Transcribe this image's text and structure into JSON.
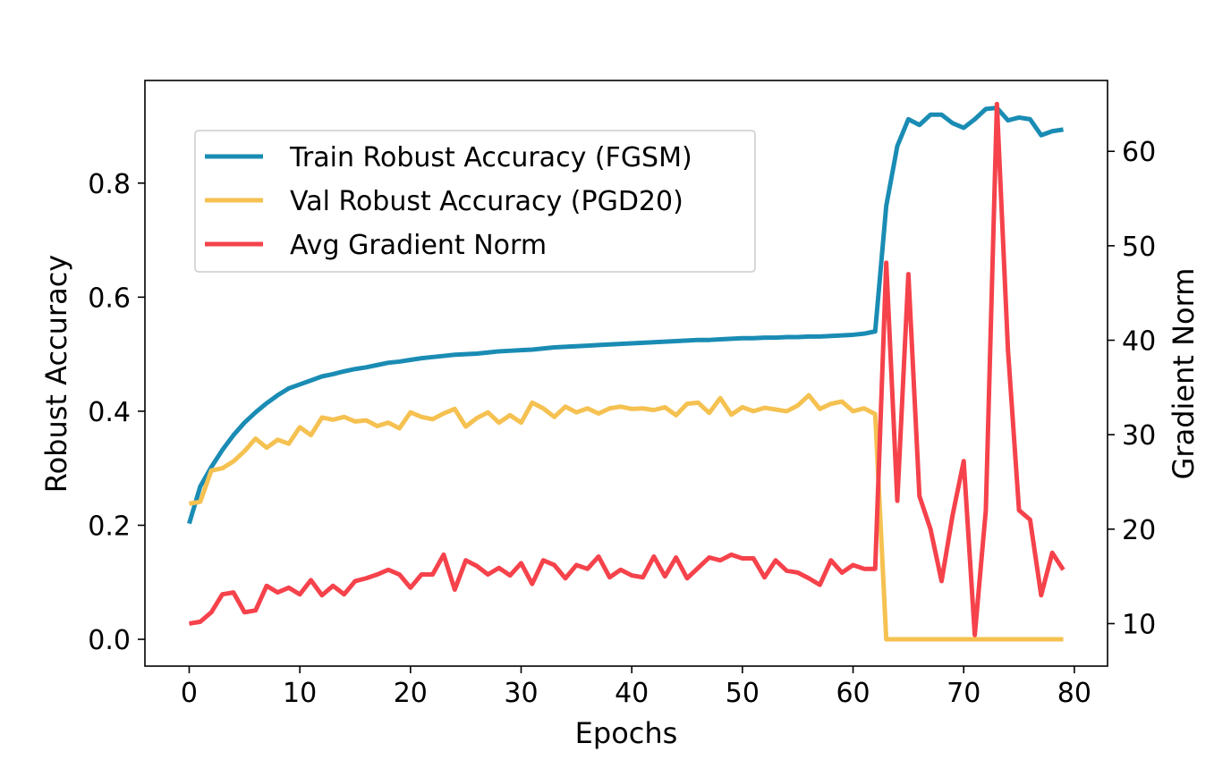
{
  "chart_data": {
    "type": "line",
    "xlabel": "Epochs",
    "ylabel": "Robust Accuracy",
    "y2label": "Gradient Norm",
    "xlim": [
      -4,
      83
    ],
    "ylim": [
      -0.047,
      0.98
    ],
    "y2lim": [
      5.5,
      67.5
    ],
    "xticks": [
      0,
      10,
      20,
      30,
      40,
      50,
      60,
      70,
      80
    ],
    "yticks": [
      0.0,
      0.2,
      0.4,
      0.6,
      0.8
    ],
    "y2ticks": [
      10,
      20,
      30,
      40,
      50,
      60
    ],
    "legend_position": "upper-left",
    "grid": false,
    "series": [
      {
        "name": "Train Robust Accuracy (FGSM)",
        "axis": "left",
        "color": "#1a8cb4",
        "values": [
          0.203,
          0.268,
          0.302,
          0.332,
          0.358,
          0.38,
          0.398,
          0.414,
          0.428,
          0.44,
          0.447,
          0.454,
          0.461,
          0.465,
          0.47,
          0.474,
          0.477,
          0.481,
          0.485,
          0.487,
          0.49,
          0.493,
          0.495,
          0.497,
          0.499,
          0.5,
          0.501,
          0.503,
          0.505,
          0.506,
          0.507,
          0.508,
          0.51,
          0.512,
          0.513,
          0.514,
          0.515,
          0.516,
          0.517,
          0.518,
          0.519,
          0.52,
          0.521,
          0.522,
          0.523,
          0.524,
          0.525,
          0.525,
          0.526,
          0.527,
          0.528,
          0.528,
          0.529,
          0.529,
          0.53,
          0.53,
          0.531,
          0.531,
          0.532,
          0.533,
          0.534,
          0.536,
          0.54,
          0.76,
          0.865,
          0.912,
          0.902,
          0.92,
          0.92,
          0.905,
          0.897,
          0.912,
          0.93,
          0.932,
          0.91,
          0.915,
          0.912,
          0.884,
          0.891,
          0.894
        ]
      },
      {
        "name": "Val Robust Accuracy (PGD20)",
        "axis": "left",
        "color": "#f5c151",
        "values": [
          0.238,
          0.241,
          0.296,
          0.3,
          0.312,
          0.33,
          0.352,
          0.336,
          0.35,
          0.343,
          0.372,
          0.358,
          0.389,
          0.385,
          0.39,
          0.382,
          0.384,
          0.374,
          0.38,
          0.37,
          0.398,
          0.39,
          0.386,
          0.396,
          0.404,
          0.373,
          0.388,
          0.398,
          0.38,
          0.393,
          0.38,
          0.415,
          0.405,
          0.39,
          0.408,
          0.398,
          0.405,
          0.396,
          0.405,
          0.408,
          0.404,
          0.405,
          0.402,
          0.407,
          0.393,
          0.413,
          0.415,
          0.397,
          0.423,
          0.394,
          0.407,
          0.4,
          0.406,
          0.403,
          0.4,
          0.41,
          0.428,
          0.404,
          0.413,
          0.417,
          0.4,
          0.405,
          0.395,
          0.0,
          0.0,
          0.0,
          0.0,
          0.0,
          0.0,
          0.0,
          0.0,
          0.0,
          0.0,
          0.0,
          0.0,
          0.0,
          0.0,
          0.0,
          0.0,
          0.0
        ]
      },
      {
        "name": "Avg Gradient Norm",
        "axis": "right",
        "color": "#f5424b",
        "values": [
          10.0,
          10.2,
          11.2,
          13.1,
          13.3,
          11.2,
          11.4,
          14.0,
          13.3,
          13.8,
          13.1,
          14.6,
          13.0,
          14.0,
          13.1,
          14.5,
          14.8,
          15.2,
          15.7,
          15.2,
          13.8,
          15.2,
          15.2,
          17.3,
          13.6,
          16.7,
          16.1,
          15.2,
          15.9,
          15.1,
          16.4,
          14.2,
          16.7,
          16.2,
          14.8,
          16.2,
          15.8,
          17.1,
          14.9,
          15.7,
          15.1,
          14.9,
          17.1,
          15.0,
          17.0,
          14.8,
          15.9,
          17.0,
          16.7,
          17.3,
          16.9,
          16.9,
          14.9,
          16.7,
          15.6,
          15.4,
          14.8,
          14.1,
          16.7,
          15.4,
          16.2,
          15.8,
          15.8,
          48.2,
          23.0,
          47.0,
          23.5,
          20.0,
          14.5,
          21.5,
          27.2,
          8.8,
          22.0,
          65.0,
          39.0,
          22.0,
          21.0,
          13.0,
          17.5,
          15.7
        ]
      }
    ]
  }
}
